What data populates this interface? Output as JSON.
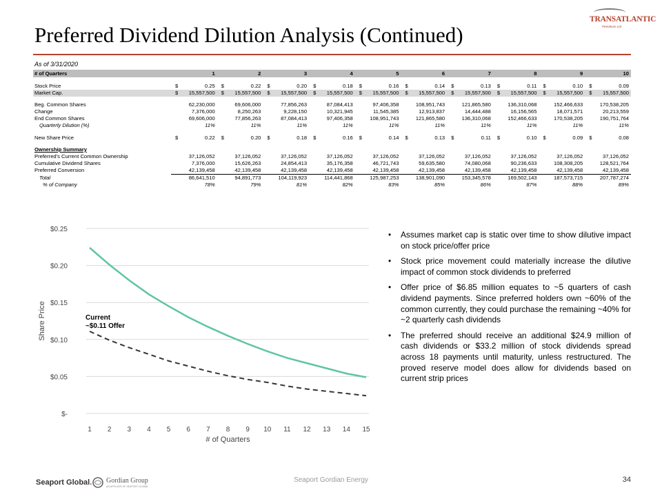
{
  "page": {
    "title": "Preferred Dividend Dilution Analysis (Continued)",
    "logo": "TRANSATLANTIC",
    "logo_sub": "Petroleum Ltd.",
    "accent_color": "#b5412c"
  },
  "table": {
    "as_of": "As of 3/31/2020",
    "header_label": "# of Quarters",
    "quarters": [
      "1",
      "2",
      "3",
      "4",
      "5",
      "6",
      "7",
      "8",
      "9",
      "10"
    ],
    "stock_price": {
      "label": "Stock Price",
      "values": [
        "0.25",
        "0.22",
        "0.20",
        "0.18",
        "0.16",
        "0.14",
        "0.13",
        "0.11",
        "0.10",
        "0.09"
      ]
    },
    "market_cap": {
      "label": "Market Cap.",
      "values": [
        "15,557,500",
        "15,557,500",
        "15,557,500",
        "15,557,500",
        "15,557,500",
        "15,557,500",
        "15,557,500",
        "15,557,500",
        "15,557,500",
        "15,557,500"
      ]
    },
    "beg_common": {
      "label": "Beg. Common Shares",
      "values": [
        "62,230,000",
        "69,606,000",
        "77,856,263",
        "87,084,413",
        "97,406,358",
        "108,951,743",
        "121,865,580",
        "136,310,068",
        "152,466,633",
        "170,538,205"
      ]
    },
    "change": {
      "label": "Change",
      "values": [
        "7,376,000",
        "8,250,263",
        "9,228,150",
        "10,321,945",
        "11,545,385",
        "12,913,837",
        "14,444,488",
        "16,156,565",
        "18,071,571",
        "20,213,559"
      ]
    },
    "end_common": {
      "label": "End Common Shares",
      "values": [
        "69,606,000",
        "77,856,263",
        "87,084,413",
        "97,406,358",
        "108,951,743",
        "121,865,580",
        "136,310,068",
        "152,466,633",
        "170,538,205",
        "190,751,764"
      ]
    },
    "quarterly_dilution": {
      "label": "Quarterly Dilution (%)",
      "values": [
        "11%",
        "11%",
        "11%",
        "11%",
        "11%",
        "11%",
        "11%",
        "11%",
        "11%",
        "11%"
      ]
    },
    "new_share_price": {
      "label": "New Share Price",
      "values": [
        "0.22",
        "0.20",
        "0.18",
        "0.16",
        "0.14",
        "0.13",
        "0.11",
        "0.10",
        "0.09",
        "0.08"
      ]
    },
    "ownership_summary": "Ownership Summary",
    "pref_current": {
      "label": "Preferred's Current Common Ownership",
      "values": [
        "37,126,052",
        "37,126,052",
        "37,126,052",
        "37,126,052",
        "37,126,052",
        "37,126,052",
        "37,126,052",
        "37,126,052",
        "37,126,052",
        "37,126,052"
      ]
    },
    "cum_div": {
      "label": "Cumulative Dividend Shares",
      "values": [
        "7,376,000",
        "15,626,263",
        "24,854,413",
        "35,176,358",
        "46,721,743",
        "59,635,580",
        "74,080,068",
        "90,236,633",
        "108,308,205",
        "128,521,764"
      ]
    },
    "pref_conv": {
      "label": "Preferred Conversion",
      "values": [
        "42,139,458",
        "42,139,458",
        "42,139,458",
        "42,139,458",
        "42,139,458",
        "42,139,458",
        "42,139,458",
        "42,139,458",
        "42,139,458",
        "42,139,458"
      ]
    },
    "total": {
      "label": "Total",
      "values": [
        "86,641,510",
        "94,891,773",
        "104,119,923",
        "114,441,868",
        "125,987,253",
        "138,901,090",
        "153,345,578",
        "169,502,143",
        "187,573,715",
        "207,787,274"
      ]
    },
    "pct_company": {
      "label": "% of Company",
      "values": [
        "78%",
        "79%",
        "81%",
        "82%",
        "83%",
        "85%",
        "86%",
        "87%",
        "88%",
        "89%"
      ]
    }
  },
  "chart_data": {
    "type": "line",
    "xlabel": "# of Quarters",
    "ylabel": "Share Price",
    "x": [
      1,
      2,
      3,
      4,
      5,
      6,
      7,
      8,
      9,
      10,
      11,
      12,
      13,
      14,
      15
    ],
    "ylim": [
      0,
      0.25
    ],
    "y_ticks": [
      0,
      0.05,
      0.1,
      0.15,
      0.2,
      0.25
    ],
    "y_tick_labels": [
      "$-",
      "$0.05",
      "$0.10",
      "$0.15",
      "$0.20",
      "$0.25"
    ],
    "series": [
      {
        "name": "Stock Price",
        "style": "solid",
        "color": "#5fc4a4",
        "values": [
          0.224,
          0.201,
          0.18,
          0.161,
          0.145,
          0.13,
          0.117,
          0.105,
          0.094,
          0.084,
          0.075,
          0.068,
          0.061,
          0.054,
          0.049
        ]
      },
      {
        "name": "Offer",
        "style": "dashed",
        "color": "#333333",
        "values": [
          0.111,
          0.099,
          0.089,
          0.08,
          0.071,
          0.064,
          0.057,
          0.051,
          0.046,
          0.042,
          0.037,
          0.033,
          0.03,
          0.027,
          0.024
        ]
      }
    ],
    "annotation": {
      "line1": "Current",
      "line2": "~$0.11 Offer"
    }
  },
  "bullets": [
    "Assumes market cap is static over time to show dilutive impact on stock price/offer price",
    "Stock price movement  could materially increase the dilutive impact of common stock dividends to preferred",
    "Offer price of $6.85 million equates to ~5 quarters of cash dividend payments.  Since preferred holders own ~60% of the common currently, they could purchase the remaining  ~40% for ~2 quarterly cash dividends",
    "The preferred  should receive an additional $24.9 million of cash dividends or $33.2 million of stock dividends  spread across 18 payments until maturity, unless restructured.  The proved reserve model does allow for dividends  based on current strip prices"
  ],
  "footer": {
    "brand_left": "Seaport Global",
    "brand_right": "Gordian Group",
    "brand_right_sub": "AN AFFILIATE OF SEAPORT GLOBAL",
    "center": "Seaport Gordian Energy",
    "page_number": "34"
  }
}
